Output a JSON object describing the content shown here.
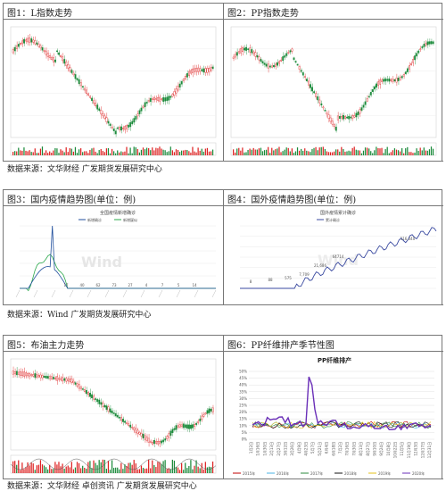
{
  "panels": [
    {
      "title": "图1：L指数走势",
      "tag": "L"
    },
    {
      "title": "图2：PP指数走势",
      "tag": "PP"
    },
    {
      "title": "图3：国内疫情趋势图(单位：例)",
      "chart_title": "全国疫情新增确诊",
      "legend": [
        "新增确诊",
        "新增疑似"
      ]
    },
    {
      "title": "图4：国外疫情趋势图(单位：例)",
      "chart_title": "国外疫情累计确诊",
      "legend": [
        "累计确诊"
      ]
    },
    {
      "title": "图5：布油主力走势"
    },
    {
      "title": "图6：PP纤维排产季节性图",
      "chart_title": "PP纤维排产"
    }
  ],
  "sources": [
    "数据来源：文华财经  广发期货发展研究中心",
    "数据来源：Wind 广发期货发展研究中心",
    "数据来源：文华财经  卓创资讯  广发期货发展研究中心"
  ],
  "watermark": "Wind",
  "chart_data": [
    {
      "type": "line",
      "title": "全国疫情新增确诊",
      "series": [
        {
          "name": "新增确诊"
        },
        {
          "name": "新增疑似"
        }
      ],
      "data_labels": [
        "17",
        "40",
        "62",
        "73",
        "27",
        "4",
        "7",
        "5",
        "14"
      ]
    },
    {
      "type": "line",
      "title": "国外疫情累计确诊",
      "series": [
        {
          "name": "累计确诊"
        }
      ],
      "data_labels": [
        "8",
        "88",
        "575",
        "7,709",
        "21,686",
        "64714",
        "116,440"
      ]
    },
    {
      "type": "line",
      "title": "PP纤维排产",
      "yticks": [
        "0%",
        "5%",
        "10%",
        "15%",
        "20%",
        "25%",
        "30%",
        "35%",
        "40%",
        "45%",
        "50%"
      ],
      "categories": [
        "1月2日",
        "1月16日",
        "1月30日",
        "2月13日",
        "2月27日",
        "3月12日",
        "3月26日",
        "4月9日",
        "4月23日",
        "5月7日",
        "5月21日",
        "6月4日",
        "6月18日",
        "7月2日",
        "7月16日",
        "7月30日",
        "8月13日",
        "8月27日",
        "9月10日",
        "9月24日",
        "10月8日",
        "10月22日",
        "11月5日",
        "11月19日",
        "12月3日",
        "12月17日",
        "12月31日"
      ],
      "series": [
        {
          "name": "2015年",
          "color": "#c00000"
        },
        {
          "name": "2016年",
          "color": "#4ab3e6"
        },
        {
          "name": "2017年",
          "color": "#2e8b3d"
        },
        {
          "name": "2018年",
          "color": "#111111"
        },
        {
          "name": "2019年",
          "color": "#e6c21a"
        },
        {
          "name": "2020年",
          "color": "#6a2fb8"
        }
      ]
    }
  ]
}
